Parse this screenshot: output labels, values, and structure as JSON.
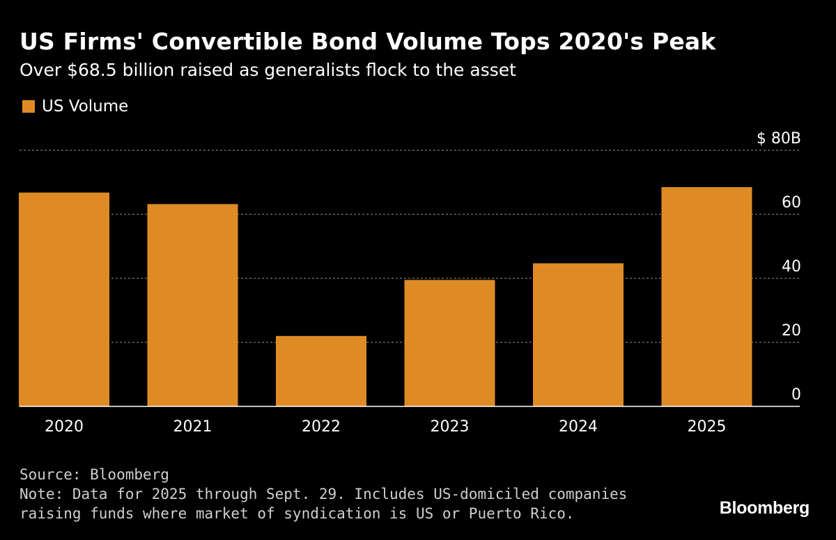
{
  "colors": {
    "bar": "#DE8B26",
    "grid": "#777777",
    "axis": "#ffffff",
    "text": "#ffffff"
  },
  "chart_data": {
    "type": "bar",
    "title": "US Firms' Convertible Bond Volume Tops 2020's Peak",
    "subtitle": "Over $68.5 billion raised as generalists flock to the asset",
    "legend": [
      {
        "name": "US Volume",
        "color": "#DE8B26"
      }
    ],
    "categories": [
      "2020",
      "2021",
      "2022",
      "2023",
      "2024",
      "2025"
    ],
    "series": [
      {
        "name": "US Volume",
        "values": [
          66.8,
          63.2,
          22.0,
          39.5,
          44.7,
          68.5
        ]
      }
    ],
    "ylim": [
      0,
      80
    ],
    "yticks": [
      0,
      20,
      40,
      60,
      80
    ],
    "ytick_labels": [
      "0",
      "20",
      "40",
      "60",
      "$ 80B"
    ],
    "y_axis_position": "right",
    "grid": true,
    "xlabel": "",
    "ylabel": ""
  },
  "footer": {
    "source": "Source: Bloomberg",
    "note_line1": "Note: Data for 2025 through Sept. 29. Includes US-domiciled companies",
    "note_line2": "raising funds where market of syndication is US or Puerto Rico."
  },
  "brand": "Bloomberg"
}
